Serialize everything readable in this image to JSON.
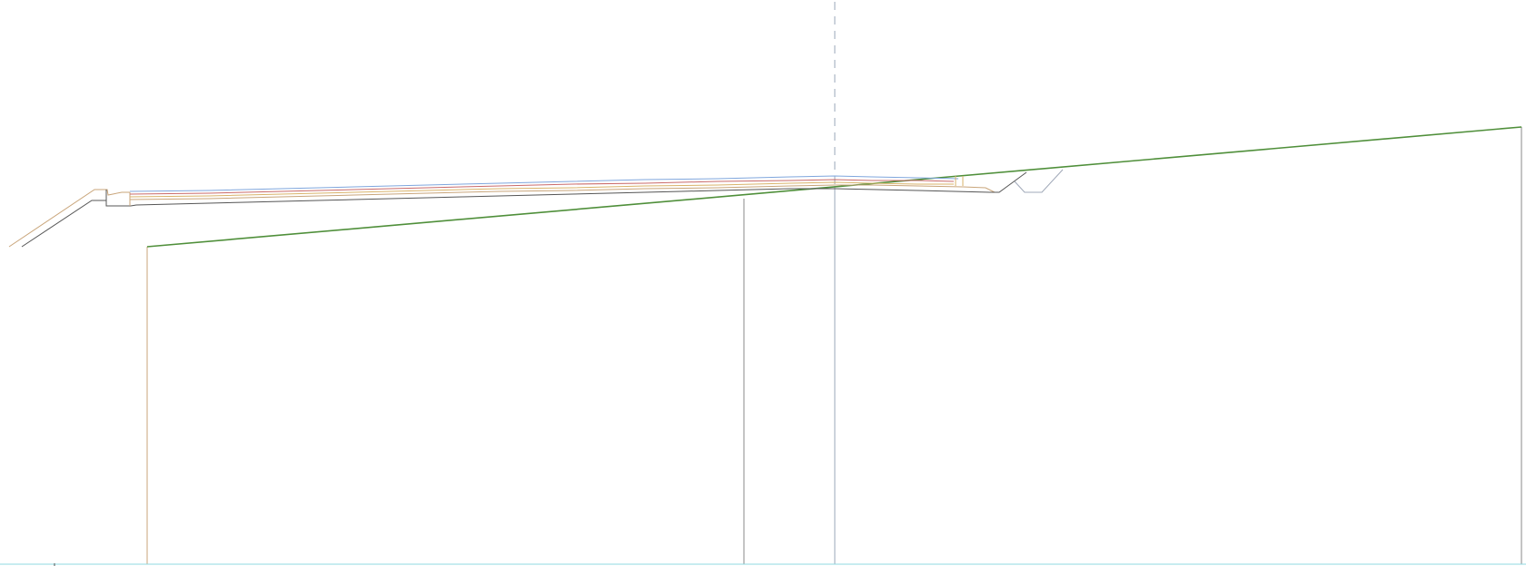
{
  "drawing": {
    "colors": {
      "background": "#ffffff",
      "centerline": "#9aa7b8",
      "ground_line": "#4f8f3a",
      "existing_surface": "#555555",
      "layer_tan": "#c9a57a",
      "layer_blue": "#7fa6dd",
      "layer_red": "#c96a6a",
      "layer_orange": "#d9b36a",
      "layer_gray": "#888888",
      "ditch": "#a0a8b8",
      "baseline": "#8fd8e0"
    }
  }
}
